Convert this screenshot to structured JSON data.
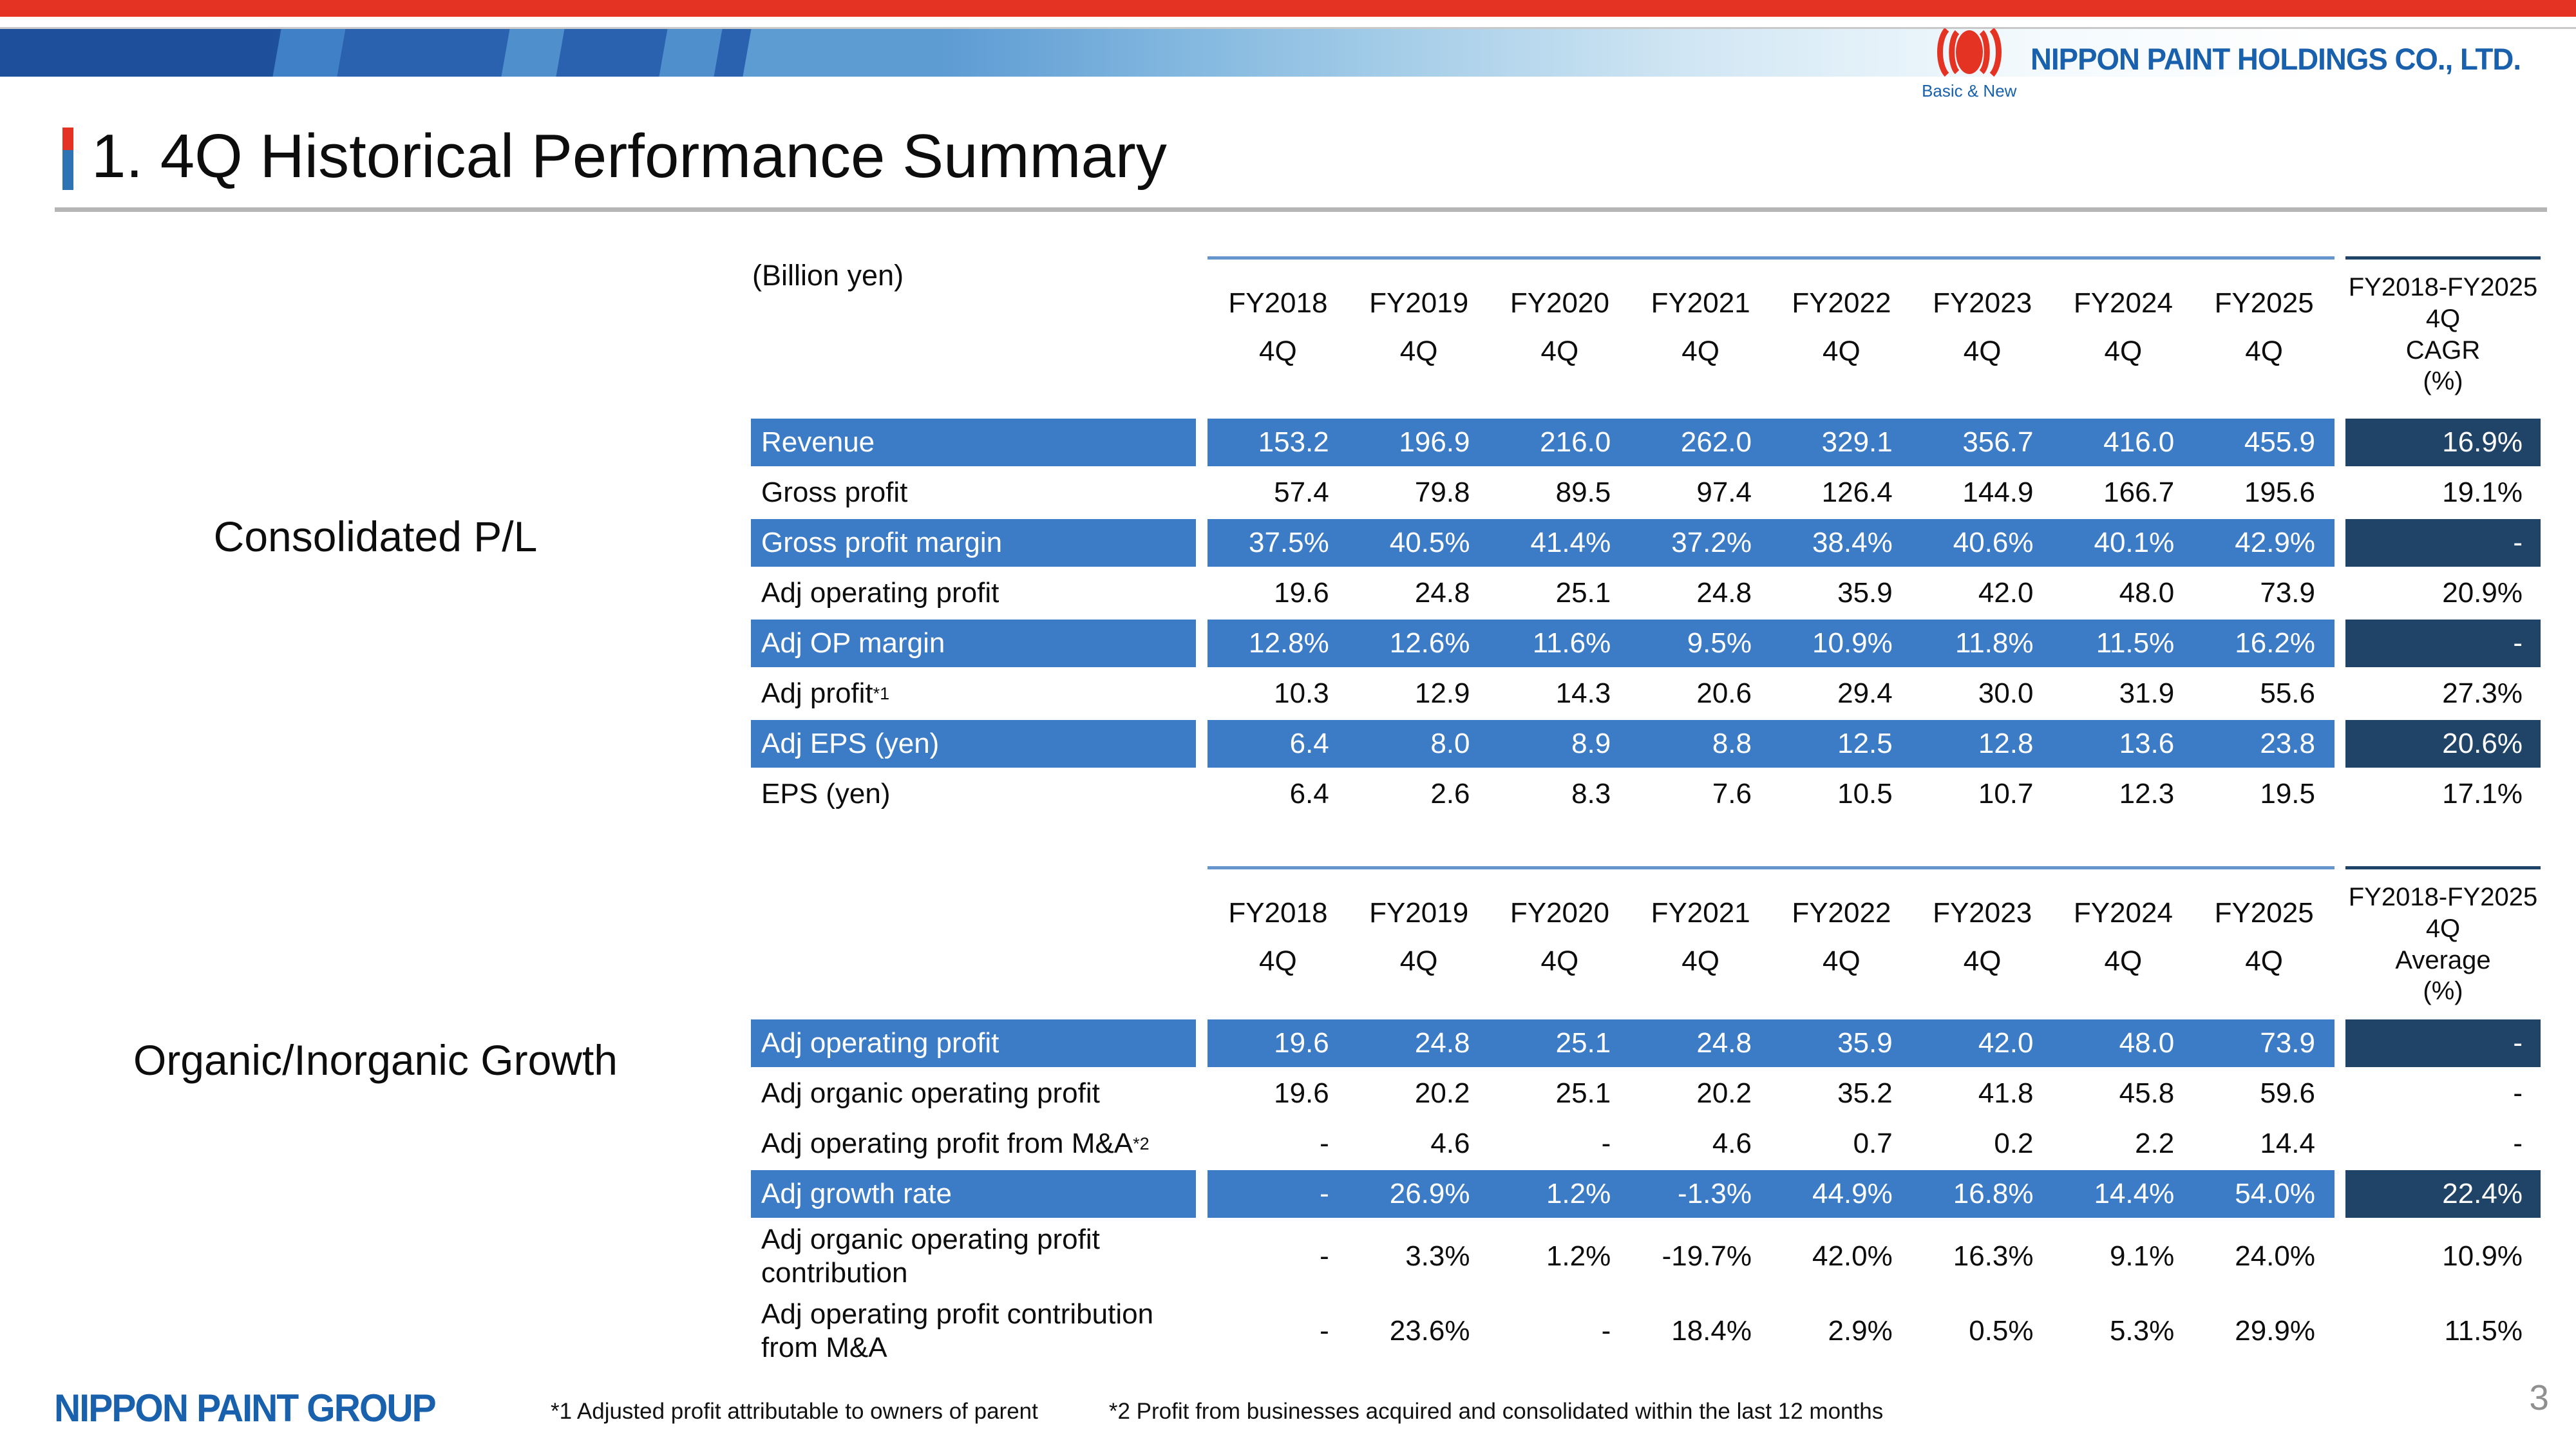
{
  "header": {
    "company_name": "NIPPON PAINT HOLDINGS CO., LTD.",
    "tagline": "Basic & New"
  },
  "title": "1. 4Q Historical Performance Summary",
  "unit_label": "(Billion yen)",
  "colors": {
    "top_bar_red": "#e53323",
    "banner_dark_blue": "#1d4f9b",
    "row_highlight_blue": "#3c7cc6",
    "summary_navy": "#1f4468",
    "logo_blue": "#1961ac",
    "divider_gray": "#b5b5b5"
  },
  "columns": {
    "years": [
      "FY2018",
      "FY2019",
      "FY2020",
      "FY2021",
      "FY2022",
      "FY2023",
      "FY2024",
      "FY2025"
    ],
    "sub": "4Q"
  },
  "table1": {
    "section_label": "Consolidated P/L",
    "summary_header_lines": [
      "FY2018-FY2025",
      "4Q",
      "CAGR",
      "(%)"
    ],
    "rows": [
      {
        "label": "Revenue",
        "highlight": true,
        "values": [
          "153.2",
          "196.9",
          "216.0",
          "262.0",
          "329.1",
          "356.7",
          "416.0",
          "455.9"
        ],
        "summary": "16.9%"
      },
      {
        "label": "Gross profit",
        "highlight": false,
        "values": [
          "57.4",
          "79.8",
          "89.5",
          "97.4",
          "126.4",
          "144.9",
          "166.7",
          "195.6"
        ],
        "summary": "19.1%"
      },
      {
        "label": "Gross profit margin",
        "highlight": true,
        "values": [
          "37.5%",
          "40.5%",
          "41.4%",
          "37.2%",
          "38.4%",
          "40.6%",
          "40.1%",
          "42.9%"
        ],
        "summary": "-"
      },
      {
        "label": "Adj operating profit",
        "highlight": false,
        "values": [
          "19.6",
          "24.8",
          "25.1",
          "24.8",
          "35.9",
          "42.0",
          "48.0",
          "73.9"
        ],
        "summary": "20.9%"
      },
      {
        "label": "Adj OP margin",
        "highlight": true,
        "values": [
          "12.8%",
          "12.6%",
          "11.6%",
          "9.5%",
          "10.9%",
          "11.8%",
          "11.5%",
          "16.2%"
        ],
        "summary": "-"
      },
      {
        "label": "Adj profit",
        "label_sup": "*1",
        "highlight": false,
        "values": [
          "10.3",
          "12.9",
          "14.3",
          "20.6",
          "29.4",
          "30.0",
          "31.9",
          "55.6"
        ],
        "summary": "27.3%"
      },
      {
        "label": "Adj EPS (yen)",
        "highlight": true,
        "values": [
          "6.4",
          "8.0",
          "8.9",
          "8.8",
          "12.5",
          "12.8",
          "13.6",
          "23.8"
        ],
        "summary": "20.6%"
      },
      {
        "label": "EPS (yen)",
        "highlight": false,
        "values": [
          "6.4",
          "2.6",
          "8.3",
          "7.6",
          "10.5",
          "10.7",
          "12.3",
          "19.5"
        ],
        "summary": "17.1%"
      }
    ]
  },
  "table2": {
    "section_label": "Organic/Inorganic Growth",
    "summary_header_lines": [
      "FY2018-FY2025",
      "4Q",
      "Average",
      "(%)"
    ],
    "rows": [
      {
        "label": "Adj operating profit",
        "highlight": true,
        "values": [
          "19.6",
          "24.8",
          "25.1",
          "24.8",
          "35.9",
          "42.0",
          "48.0",
          "73.9"
        ],
        "summary": "-"
      },
      {
        "label": "Adj organic operating profit",
        "highlight": false,
        "values": [
          "19.6",
          "20.2",
          "25.1",
          "20.2",
          "35.2",
          "41.8",
          "45.8",
          "59.6"
        ],
        "summary": "-"
      },
      {
        "label": "Adj operating profit from M&A",
        "label_sup": "*2",
        "highlight": false,
        "values": [
          "-",
          "4.6",
          "-",
          "4.6",
          "0.7",
          "0.2",
          "2.2",
          "14.4"
        ],
        "summary": "-"
      },
      {
        "label": "Adj growth rate",
        "highlight": true,
        "values": [
          "-",
          "26.9%",
          "1.2%",
          "-1.3%",
          "44.9%",
          "16.8%",
          "14.4%",
          "54.0%"
        ],
        "summary": "22.4%"
      },
      {
        "label_lines": [
          "Adj organic operating profit",
          "contribution"
        ],
        "highlight": false,
        "values": [
          "-",
          "3.3%",
          "1.2%",
          "-19.7%",
          "42.0%",
          "16.3%",
          "9.1%",
          "24.0%"
        ],
        "summary": "10.9%"
      },
      {
        "label_lines": [
          "Adj operating profit contribution",
          "from M&A"
        ],
        "highlight": false,
        "values": [
          "-",
          "23.6%",
          "-",
          "18.4%",
          "2.9%",
          "0.5%",
          "5.3%",
          "29.9%"
        ],
        "summary": "11.5%"
      }
    ]
  },
  "footer": {
    "logo": "NIPPON PAINT GROUP",
    "footnote1": "*1 Adjusted profit attributable to owners of parent",
    "footnote2": "*2 Profit from businesses acquired and consolidated within the last 12 months",
    "page_number": "3"
  }
}
